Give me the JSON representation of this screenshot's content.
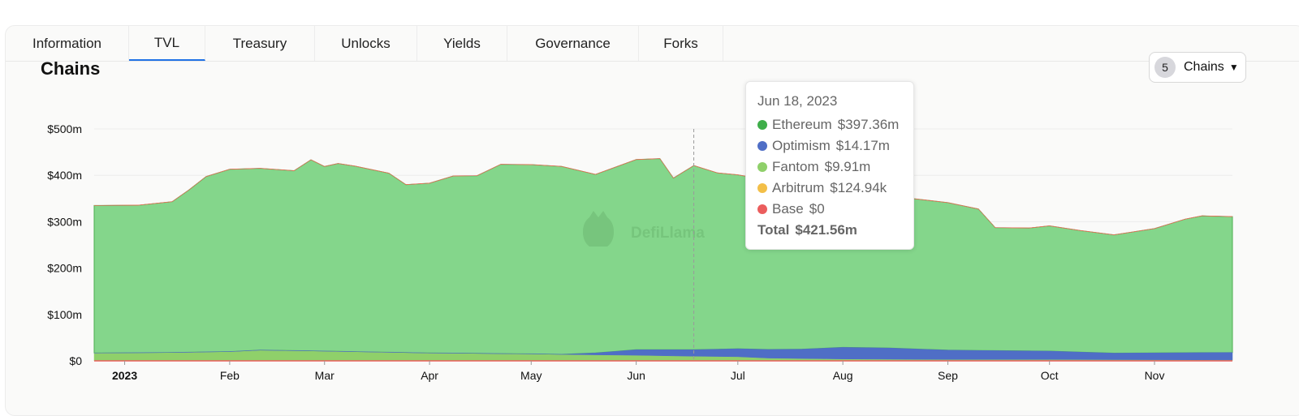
{
  "tabs": [
    {
      "label": "Information"
    },
    {
      "label": "TVL",
      "active": true
    },
    {
      "label": "Treasury"
    },
    {
      "label": "Unlocks"
    },
    {
      "label": "Yields"
    },
    {
      "label": "Governance"
    },
    {
      "label": "Forks"
    }
  ],
  "chains_selector": {
    "count": "5",
    "label": "Chains"
  },
  "watermark": "DefiLlama",
  "colors": {
    "Ethereum": "#84d68b",
    "Optimism": "#4f6ec6",
    "Fantom": "#8fd06a",
    "Arbitrum": "#f3bf48",
    "Base": "#eb5d5d",
    "active_tab": "#2172e5"
  },
  "tooltip": {
    "date": "Jun 18, 2023",
    "rows": [
      {
        "name": "Ethereum",
        "value": "$397.36m",
        "color": "#3fae4a"
      },
      {
        "name": "Optimism",
        "value": "$14.17m",
        "color": "#4f6ec6"
      },
      {
        "name": "Fantom",
        "value": "$9.91m",
        "color": "#8fd06a"
      },
      {
        "name": "Arbitrum",
        "value": "$124.94k",
        "color": "#f3bf48"
      },
      {
        "name": "Base",
        "value": "$0",
        "color": "#eb5d5d"
      }
    ],
    "total_label": "Total",
    "total_value": "$421.56m"
  },
  "chart_data": {
    "type": "area",
    "stacked": true,
    "title": "Chains",
    "y_ticks": [
      "$0",
      "$100m",
      "$200m",
      "$300m",
      "$400m",
      "$500m"
    ],
    "ylim": [
      0,
      500
    ],
    "x_ticks": [
      {
        "label": "2023",
        "date": "2023-01-01",
        "bold": true
      },
      {
        "label": "Feb",
        "date": "2023-02-01"
      },
      {
        "label": "Mar",
        "date": "2023-03-01"
      },
      {
        "label": "Apr",
        "date": "2023-04-01"
      },
      {
        "label": "May",
        "date": "2023-05-01"
      },
      {
        "label": "Jun",
        "date": "2023-06-01"
      },
      {
        "label": "Jul",
        "date": "2023-07-01"
      },
      {
        "label": "Aug",
        "date": "2023-08-01"
      },
      {
        "label": "Sep",
        "date": "2023-09-01"
      },
      {
        "label": "Oct",
        "date": "2023-10-01"
      },
      {
        "label": "Nov",
        "date": "2023-11-01"
      }
    ],
    "x_range": [
      "2022-12-23",
      "2023-11-24"
    ],
    "hover_date": "2023-06-18",
    "grid": true,
    "series": [
      {
        "name": "Fantom",
        "points": [
          [
            "2022-12-23",
            17
          ],
          [
            "2023-01-15",
            18
          ],
          [
            "2023-02-01",
            20
          ],
          [
            "2023-02-10",
            23
          ],
          [
            "2023-03-01",
            21
          ],
          [
            "2023-04-01",
            17
          ],
          [
            "2023-05-01",
            15
          ],
          [
            "2023-05-20",
            13
          ],
          [
            "2023-06-01",
            12
          ],
          [
            "2023-06-18",
            10
          ],
          [
            "2023-07-01",
            9
          ],
          [
            "2023-07-10",
            6
          ],
          [
            "2023-08-01",
            4
          ],
          [
            "2023-09-01",
            3
          ],
          [
            "2023-10-01",
            3
          ],
          [
            "2023-11-24",
            2
          ]
        ]
      },
      {
        "name": "Optimism",
        "points": [
          [
            "2022-12-23",
            0
          ],
          [
            "2023-05-10",
            0
          ],
          [
            "2023-05-20",
            4
          ],
          [
            "2023-06-01",
            12
          ],
          [
            "2023-06-18",
            14
          ],
          [
            "2023-07-01",
            17
          ],
          [
            "2023-07-20",
            20
          ],
          [
            "2023-08-01",
            25
          ],
          [
            "2023-08-15",
            24
          ],
          [
            "2023-09-01",
            20
          ],
          [
            "2023-10-01",
            18
          ],
          [
            "2023-10-20",
            14
          ],
          [
            "2023-11-24",
            16
          ]
        ]
      },
      {
        "name": "Ethereum",
        "points": [
          [
            "2022-12-23",
            318
          ],
          [
            "2023-01-05",
            318
          ],
          [
            "2023-01-15",
            325
          ],
          [
            "2023-01-20",
            350
          ],
          [
            "2023-01-25",
            378
          ],
          [
            "2023-02-01",
            393
          ],
          [
            "2023-02-10",
            392
          ],
          [
            "2023-02-20",
            388
          ],
          [
            "2023-02-25",
            412
          ],
          [
            "2023-03-01",
            398
          ],
          [
            "2023-03-05",
            405
          ],
          [
            "2023-03-10",
            400
          ],
          [
            "2023-03-20",
            386
          ],
          [
            "2023-03-25",
            362
          ],
          [
            "2023-04-01",
            366
          ],
          [
            "2023-04-08",
            382
          ],
          [
            "2023-04-15",
            383
          ],
          [
            "2023-04-22",
            408
          ],
          [
            "2023-05-01",
            408
          ],
          [
            "2023-05-10",
            405
          ],
          [
            "2023-05-20",
            385
          ],
          [
            "2023-06-01",
            410
          ],
          [
            "2023-06-08",
            412
          ],
          [
            "2023-06-12",
            370
          ],
          [
            "2023-06-18",
            397
          ],
          [
            "2023-06-25",
            380
          ],
          [
            "2023-07-01",
            375
          ],
          [
            "2023-07-10",
            365
          ],
          [
            "2023-07-20",
            362
          ],
          [
            "2023-08-01",
            343
          ],
          [
            "2023-08-10",
            336
          ],
          [
            "2023-08-20",
            325
          ],
          [
            "2023-09-01",
            318
          ],
          [
            "2023-09-10",
            305
          ],
          [
            "2023-09-15",
            265
          ],
          [
            "2023-09-25",
            265
          ],
          [
            "2023-10-01",
            270
          ],
          [
            "2023-10-10",
            262
          ],
          [
            "2023-10-20",
            255
          ],
          [
            "2023-11-01",
            268
          ],
          [
            "2023-11-10",
            288
          ],
          [
            "2023-11-15",
            295
          ],
          [
            "2023-11-24",
            293
          ]
        ]
      },
      {
        "name": "Arbitrum",
        "points": [
          [
            "2022-12-23",
            0.1
          ],
          [
            "2023-11-24",
            0.1
          ]
        ]
      },
      {
        "name": "Base",
        "points": [
          [
            "2022-12-23",
            0
          ],
          [
            "2023-11-24",
            0
          ]
        ]
      }
    ]
  }
}
